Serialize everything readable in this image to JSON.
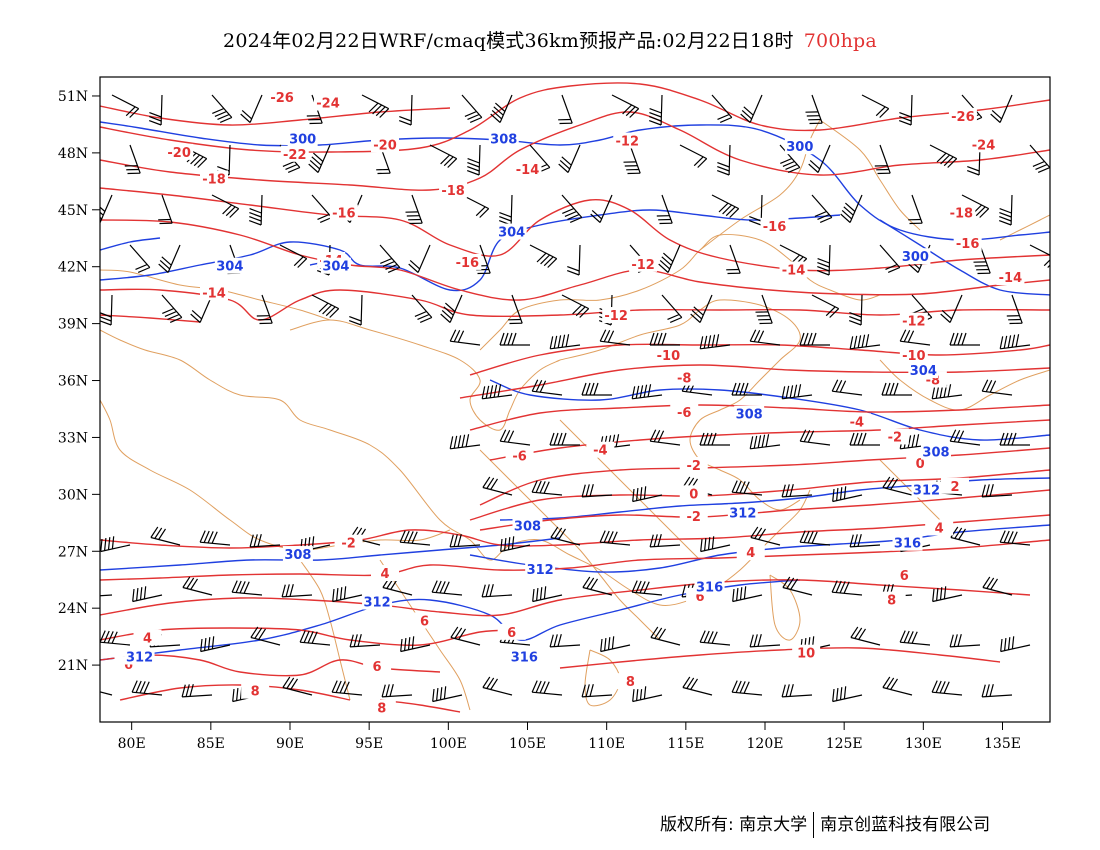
{
  "title": {
    "main": "2024年02月22日WRF/cmaq模式36km预报产品:02月22日18时",
    "level": "700hpa",
    "level_color": "#e23333"
  },
  "map": {
    "lon_range": [
      78,
      138
    ],
    "lat_range": [
      18,
      52
    ],
    "lon_ticks": [
      "80E",
      "85E",
      "90E",
      "95E",
      "100E",
      "105E",
      "110E",
      "115E",
      "120E",
      "125E",
      "130E",
      "135E"
    ],
    "lat_ticks": [
      "51N",
      "48N",
      "45N",
      "42N",
      "39N",
      "36N",
      "33N",
      "30N",
      "27N",
      "24N",
      "21N"
    ],
    "temperature_color": "#e23333",
    "height_color": "#2040e0",
    "border_color": "#e0a060",
    "barb_color": "#000000",
    "temperature_labels": [
      {
        "text": "-26",
        "lon": 89.5,
        "lat": 50.9
      },
      {
        "text": "-24",
        "lon": 92.4,
        "lat": 50.6
      },
      {
        "text": "-22",
        "lon": 90.3,
        "lat": 47.9
      },
      {
        "text": "-20",
        "lon": 83.0,
        "lat": 48.0
      },
      {
        "text": "-20",
        "lon": 96.0,
        "lat": 48.4
      },
      {
        "text": "-18",
        "lon": 85.2,
        "lat": 46.6
      },
      {
        "text": "-18",
        "lon": 100.3,
        "lat": 46.0
      },
      {
        "text": "-16",
        "lon": 93.4,
        "lat": 44.8
      },
      {
        "text": "-16",
        "lon": 101.2,
        "lat": 42.2
      },
      {
        "text": "-14",
        "lon": 105.0,
        "lat": 47.1
      },
      {
        "text": "-14",
        "lon": 92.6,
        "lat": 42.3
      },
      {
        "text": "-14",
        "lon": 85.2,
        "lat": 40.6
      },
      {
        "text": "-12",
        "lon": 111.3,
        "lat": 48.6
      },
      {
        "text": "-12",
        "lon": 112.3,
        "lat": 42.1
      },
      {
        "text": "-12",
        "lon": 110.6,
        "lat": 39.4
      },
      {
        "text": "-16",
        "lon": 120.6,
        "lat": 44.1
      },
      {
        "text": "-14",
        "lon": 121.8,
        "lat": 41.8
      },
      {
        "text": "-12",
        "lon": 129.4,
        "lat": 39.1
      },
      {
        "text": "-10",
        "lon": 113.9,
        "lat": 37.3
      },
      {
        "text": "-10",
        "lon": 129.4,
        "lat": 37.3
      },
      {
        "text": "-8",
        "lon": 114.9,
        "lat": 36.1
      },
      {
        "text": "-8",
        "lon": 130.6,
        "lat": 36.0
      },
      {
        "text": "-6",
        "lon": 114.9,
        "lat": 34.3
      },
      {
        "text": "-4",
        "lon": 109.6,
        "lat": 32.3
      },
      {
        "text": "-4",
        "lon": 125.8,
        "lat": 33.8
      },
      {
        "text": "-2",
        "lon": 115.5,
        "lat": 31.5
      },
      {
        "text": "-2",
        "lon": 128.2,
        "lat": 33.0
      },
      {
        "text": "-6",
        "lon": 104.5,
        "lat": 32.0
      },
      {
        "text": "0",
        "lon": 115.5,
        "lat": 30.0
      },
      {
        "text": "0",
        "lon": 129.8,
        "lat": 31.6
      },
      {
        "text": "-2",
        "lon": 115.5,
        "lat": 28.8
      },
      {
        "text": "2",
        "lon": 132.0,
        "lat": 30.4
      },
      {
        "text": "-2",
        "lon": 93.7,
        "lat": 27.4
      },
      {
        "text": "4",
        "lon": 96.0,
        "lat": 25.8
      },
      {
        "text": "4",
        "lon": 119.1,
        "lat": 26.9
      },
      {
        "text": "4",
        "lon": 131.0,
        "lat": 28.2
      },
      {
        "text": "6",
        "lon": 98.5,
        "lat": 23.3
      },
      {
        "text": "6",
        "lon": 128.8,
        "lat": 25.7
      },
      {
        "text": "6",
        "lon": 104.0,
        "lat": 22.7
      },
      {
        "text": "6",
        "lon": 115.9,
        "lat": 24.6
      },
      {
        "text": "8",
        "lon": 111.5,
        "lat": 20.1
      },
      {
        "text": "8",
        "lon": 128.0,
        "lat": 24.4
      },
      {
        "text": "10",
        "lon": 122.6,
        "lat": 21.6
      },
      {
        "text": "6",
        "lon": 79.8,
        "lat": 21.0
      },
      {
        "text": "4",
        "lon": 81.0,
        "lat": 22.4
      },
      {
        "text": "8",
        "lon": 87.8,
        "lat": 19.6
      },
      {
        "text": "6",
        "lon": 95.5,
        "lat": 20.9
      },
      {
        "text": "8",
        "lon": 95.8,
        "lat": 18.7
      },
      {
        "text": "-26",
        "lon": 132.5,
        "lat": 49.9
      },
      {
        "text": "-24",
        "lon": 133.8,
        "lat": 48.4
      },
      {
        "text": "-18",
        "lon": 132.4,
        "lat": 44.8
      },
      {
        "text": "-16",
        "lon": 132.8,
        "lat": 43.2
      },
      {
        "text": "-14",
        "lon": 135.5,
        "lat": 41.4
      }
    ],
    "height_labels": [
      {
        "text": "300",
        "lon": 90.8,
        "lat": 48.7
      },
      {
        "text": "308",
        "lon": 103.5,
        "lat": 48.7
      },
      {
        "text": "300",
        "lon": 122.2,
        "lat": 48.3
      },
      {
        "text": "304",
        "lon": 104.0,
        "lat": 43.8
      },
      {
        "text": "304",
        "lon": 86.2,
        "lat": 42.0
      },
      {
        "text": "304",
        "lon": 92.9,
        "lat": 42.0
      },
      {
        "text": "300",
        "lon": 129.5,
        "lat": 42.5
      },
      {
        "text": "304",
        "lon": 130.0,
        "lat": 36.5
      },
      {
        "text": "308",
        "lon": 119.0,
        "lat": 34.2
      },
      {
        "text": "308",
        "lon": 130.8,
        "lat": 32.2
      },
      {
        "text": "312",
        "lon": 130.2,
        "lat": 30.2
      },
      {
        "text": "312",
        "lon": 118.6,
        "lat": 29.0
      },
      {
        "text": "308",
        "lon": 105.0,
        "lat": 28.3
      },
      {
        "text": "308",
        "lon": 90.5,
        "lat": 26.8
      },
      {
        "text": "312",
        "lon": 105.8,
        "lat": 26.0
      },
      {
        "text": "316",
        "lon": 129.0,
        "lat": 27.4
      },
      {
        "text": "316",
        "lon": 116.5,
        "lat": 25.1
      },
      {
        "text": "312",
        "lon": 95.5,
        "lat": 24.3
      },
      {
        "text": "316",
        "lon": 104.8,
        "lat": 21.4
      },
      {
        "text": "312",
        "lon": 80.5,
        "lat": 21.4
      }
    ]
  },
  "footer": {
    "left": "版权所有: 南京大学",
    "right": "南京创蓝科技有限公司"
  }
}
